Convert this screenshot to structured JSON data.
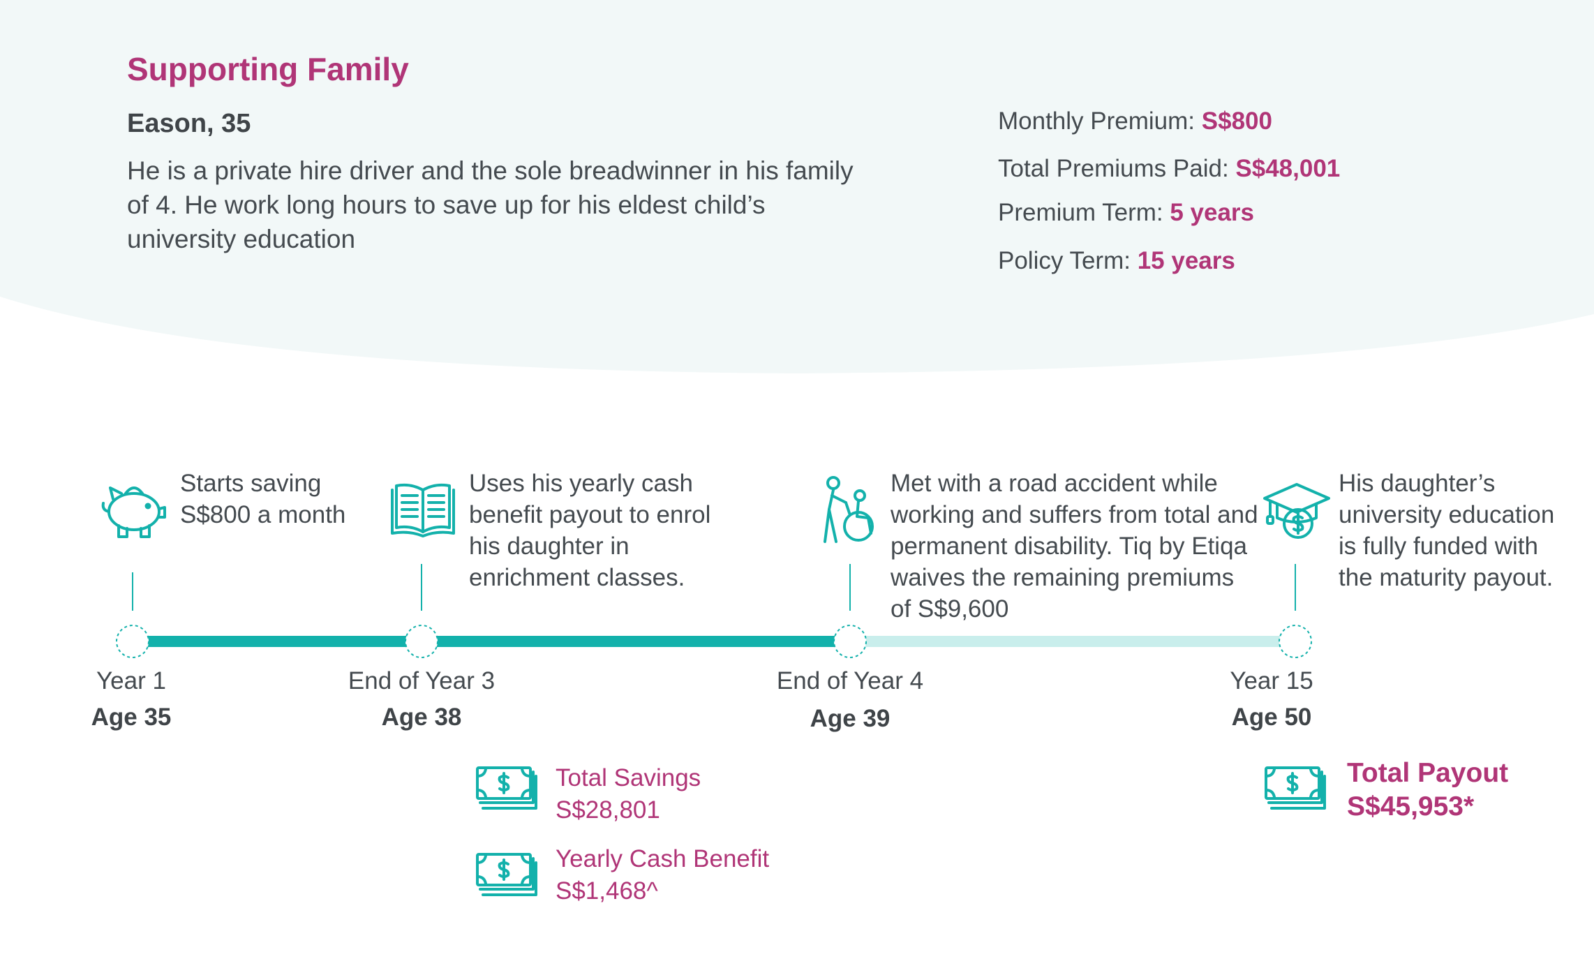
{
  "header": {
    "title": "Supporting Family",
    "name_age": "Eason, 35",
    "description": "He is a private hire driver and the sole breadwinner in his family of 4. He work long hours to save up for his eldest child’s university education"
  },
  "policy": {
    "monthly_premium_label": "Monthly Premium:",
    "monthly_premium_value": "S$800",
    "total_premiums_label": "Total Premiums Paid:",
    "total_premiums_value": "S$48,001",
    "premium_term_label": "Premium Term:",
    "premium_term_value": "5 years",
    "policy_term_label": "Policy Term:",
    "policy_term_value": "15 years"
  },
  "timeline": {
    "milestones": [
      {
        "year": "Year 1",
        "age": "Age 35",
        "icon": "piggy-bank-icon",
        "text": "Starts saving S$800 a month"
      },
      {
        "year": "End of Year 3",
        "age": "Age 38",
        "icon": "book-icon",
        "text": "Uses his yearly cash benefit payout to enrol his daughter in enrichment classes."
      },
      {
        "year": "End of Year 4",
        "age": "Age 39",
        "icon": "wheelchair-assist-icon",
        "text": "Met with a road accident while working and suffers from total and permanent disability. Tiq by Etiqa waives the remaining premiums of S$9,600"
      },
      {
        "year": "Year 15",
        "age": "Age 50",
        "icon": "graduation-cap-dollar-icon",
        "text": "His daughter’s university education is fully funded with the maturity payout."
      }
    ]
  },
  "payouts": {
    "total_savings_label": "Total Savings",
    "total_savings_value": "S$28,801",
    "yearly_cash_label": "Yearly Cash Benefit",
    "yearly_cash_value": "S$1,468^",
    "total_payout_label": "Total Payout",
    "total_payout_value": "S$45,953*"
  },
  "colors": {
    "accent_magenta": "#b03577",
    "teal": "#13b1ab",
    "teal_light": "#c9eeec",
    "header_bg": "#f2f8f8",
    "text": "#444a4f"
  }
}
